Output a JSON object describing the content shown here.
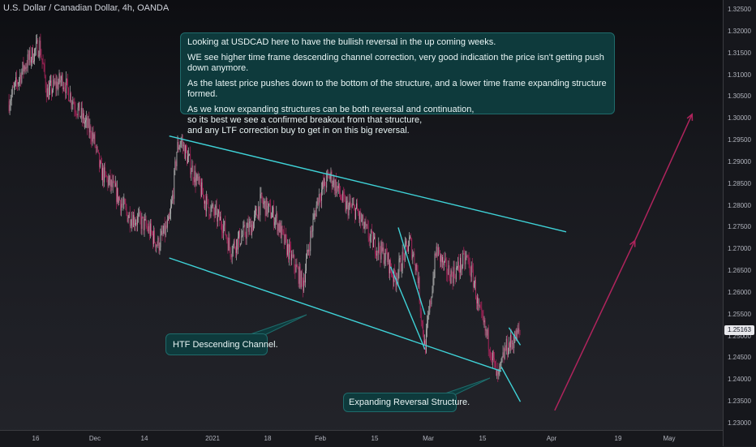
{
  "header": {
    "symbol_title": "U.S. Dollar / Canadian Dollar, 4h, OANDA"
  },
  "annotations": {
    "main_note": [
      "Looking at USDCAD here to have the bullish reversal in the up coming weeks.",
      "WE see higher time frame descending channel correction, very good indication the price isn't getting push down anymore.",
      "As the latest price pushes down to the bottom of the structure, and a lower time frame expanding structure formed.",
      "As we know expanding structures can be both reversal and continuation,\nso its best we see a confirmed breakout from that structure,\nand any LTF correction buy to get in on this big reversal."
    ],
    "htf_label": "HTF Descending Channel.",
    "expanding_label": "Expanding Reversal Structure."
  },
  "price_scale": {
    "labels": [
      "1.32500",
      "1.32000",
      "1.31500",
      "1.31000",
      "1.30500",
      "1.30000",
      "1.29500",
      "1.29000",
      "1.28500",
      "1.28000",
      "1.27500",
      "1.27000",
      "1.26500",
      "1.26000",
      "1.25500",
      "1.25000",
      "1.24500",
      "1.24000",
      "1.23500",
      "1.23000"
    ],
    "current_price": "1.25163"
  },
  "time_scale": {
    "labels": [
      "16",
      "Dec",
      "14",
      "2021",
      "18",
      "Feb",
      "15",
      "Mar",
      "15",
      "Apr",
      "19",
      "May"
    ]
  },
  "colors": {
    "bull_candle": "#b3b3b3",
    "bear_candle": "#b0245d",
    "trendline": "#3fd3d8",
    "projection": "#b0245d",
    "note_bg": "#0e3a3c"
  },
  "chart_data": {
    "type": "candlestick",
    "title": "U.S. Dollar / Canadian Dollar, 4h, OANDA",
    "ylim": [
      1.228,
      1.327
    ],
    "y_ticks": [
      1.325,
      1.32,
      1.315,
      1.31,
      1.305,
      1.3,
      1.295,
      1.29,
      1.285,
      1.28,
      1.275,
      1.27,
      1.265,
      1.26,
      1.255,
      1.25,
      1.245,
      1.24,
      1.235,
      1.23
    ],
    "x_ticks": [
      "16",
      "Dec",
      "14",
      "2021",
      "18",
      "Feb",
      "15",
      "Mar",
      "15",
      "Apr",
      "19",
      "May"
    ],
    "last_price": 1.25163,
    "price_path": [
      [
        "2020-11-09",
        1.304
      ],
      [
        "2020-11-11",
        1.308
      ],
      [
        "2020-11-13",
        1.312
      ],
      [
        "2020-11-17",
        1.317
      ],
      [
        "2020-11-19",
        1.306
      ],
      [
        "2020-11-23",
        1.309
      ],
      [
        "2020-11-27",
        1.302
      ],
      [
        "2020-12-01",
        1.296
      ],
      [
        "2020-12-03",
        1.288
      ],
      [
        "2020-12-07",
        1.283
      ],
      [
        "2020-12-10",
        1.278
      ],
      [
        "2020-12-14",
        1.276
      ],
      [
        "2020-12-16",
        1.274
      ],
      [
        "2020-12-18",
        1.271
      ],
      [
        "2020-12-21",
        1.276
      ],
      [
        "2020-12-22",
        1.283
      ],
      [
        "2020-12-23",
        1.293
      ],
      [
        "2020-12-24",
        1.295
      ],
      [
        "2020-12-28",
        1.286
      ],
      [
        "2020-12-31",
        1.28
      ],
      [
        "2021-01-04",
        1.276
      ],
      [
        "2021-01-06",
        1.27
      ],
      [
        "2021-01-08",
        1.272
      ],
      [
        "2021-01-12",
        1.276
      ],
      [
        "2021-01-14",
        1.281
      ],
      [
        "2021-01-18",
        1.277
      ],
      [
        "2021-01-20",
        1.272
      ],
      [
        "2021-01-22",
        1.268
      ],
      [
        "2021-01-25",
        1.262
      ],
      [
        "2021-01-27",
        1.273
      ],
      [
        "2021-01-29",
        1.282
      ],
      [
        "2021-02-01",
        1.287
      ],
      [
        "2021-02-03",
        1.284
      ],
      [
        "2021-02-05",
        1.28
      ],
      [
        "2021-02-08",
        1.279
      ],
      [
        "2021-02-10",
        1.275
      ],
      [
        "2021-02-12",
        1.272
      ],
      [
        "2021-02-16",
        1.268
      ],
      [
        "2021-02-18",
        1.263
      ],
      [
        "2021-02-22",
        1.272
      ],
      [
        "2021-02-24",
        1.265
      ],
      [
        "2021-02-25",
        1.255
      ],
      [
        "2021-02-26",
        1.247
      ],
      [
        "2021-03-01",
        1.27
      ],
      [
        "2021-03-03",
        1.266
      ],
      [
        "2021-03-05",
        1.264
      ],
      [
        "2021-03-09",
        1.268
      ],
      [
        "2021-03-11",
        1.262
      ],
      [
        "2021-03-12",
        1.256
      ],
      [
        "2021-03-15",
        1.248
      ],
      [
        "2021-03-16",
        1.244
      ],
      [
        "2021-03-17",
        1.24
      ],
      [
        "2021-03-18",
        1.243
      ],
      [
        "2021-03-19",
        1.247
      ],
      [
        "2021-03-22",
        1.25
      ],
      [
        "2021-03-23",
        1.2516
      ]
    ],
    "trendlines": [
      {
        "from": [
          "2020-12-21",
          1.296
        ],
        "to": [
          "2021-04-04",
          1.274
        ]
      },
      {
        "from": [
          "2020-12-21",
          1.268
        ],
        "to": [
          "2021-03-18",
          1.242
        ]
      },
      {
        "from": [
          "2021-02-19",
          1.275
        ],
        "to": [
          "2021-02-26",
          1.255
        ]
      },
      {
        "from": [
          "2021-02-17",
          1.266
        ],
        "to": [
          "2021-02-26",
          1.247
        ]
      },
      {
        "from": [
          "2021-03-18",
          1.243
        ],
        "to": [
          "2021-03-23",
          1.235
        ]
      },
      {
        "from": [
          "2021-03-20",
          1.252
        ],
        "to": [
          "2021-03-23",
          1.248
        ]
      }
    ],
    "projection": {
      "start": [
        "2021-04-01",
        1.233
      ],
      "mid": [
        "2021-04-22",
        1.272
      ],
      "end": [
        "2021-05-07",
        1.301
      ]
    }
  }
}
